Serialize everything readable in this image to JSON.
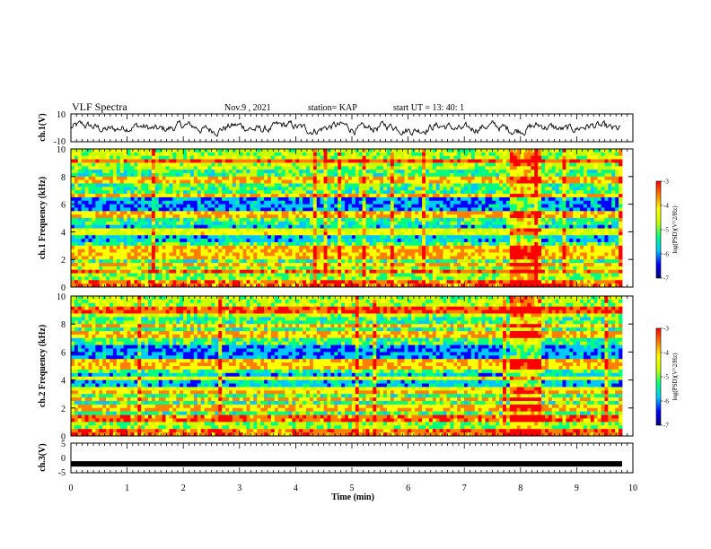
{
  "header": {
    "title": "VLF Spectra",
    "date": "Nov.9 , 2021",
    "station": "station= KAP",
    "start_time": "start UT = 13: 40: 1"
  },
  "chart_data": [
    {
      "type": "line",
      "panel": "ch1-waveform",
      "ylabel": "ch.1(V)",
      "yticks": [
        "10",
        "-10"
      ],
      "ylim": [
        -10,
        10
      ],
      "xlim": [
        0,
        10
      ],
      "description_values": "noisy waveform oscillating roughly between -6 and 6 V"
    },
    {
      "type": "heatmap",
      "panel": "ch1-spectrogram",
      "ylabel": "ch.1 Frequency (kHz)",
      "yticks": [
        "0",
        "2",
        "4",
        "6",
        "8",
        "10"
      ],
      "ylim": [
        0,
        10
      ],
      "xlim": [
        0,
        10
      ],
      "colorbar": {
        "label": "log(PSD)(V^2/Hz)",
        "ticks": [
          "-3",
          "-4",
          "-5",
          "-6",
          "-7"
        ],
        "range": [
          -7,
          -3
        ]
      },
      "bands_khz": [
        0.3,
        1.1,
        1.6,
        2.2,
        2.8,
        4.0,
        5.1,
        5.4,
        6.6,
        7.8,
        9.1
      ],
      "bright_interval_min": [
        7.8,
        8.4
      ]
    },
    {
      "type": "heatmap",
      "panel": "ch2-spectrogram",
      "ylabel": "ch.2 Frequency (kHz)",
      "yticks": [
        "0",
        "2",
        "4",
        "6",
        "8",
        "10"
      ],
      "ylim": [
        0,
        10
      ],
      "xlim": [
        0,
        10
      ],
      "colorbar": {
        "label": "log(PSD)(V^2/Hz)",
        "ticks": [
          "-3",
          "-4",
          "-5",
          "-6",
          "-7"
        ],
        "range": [
          -7,
          -3
        ]
      },
      "bands_khz": [
        0.2,
        1.2,
        2.0,
        2.6,
        3.3,
        4.1,
        4.9,
        5.3,
        7.2,
        7.9,
        9.0
      ],
      "bright_interval_min": [
        7.8,
        8.4
      ]
    },
    {
      "type": "line",
      "panel": "ch3-waveform",
      "ylabel": "ch.3(V)",
      "yticks": [
        "5",
        "0",
        "-5"
      ],
      "ylim": [
        -5,
        5
      ],
      "xlim": [
        0,
        10
      ],
      "level_v": -2
    }
  ],
  "xaxis": {
    "label": "Time (min)",
    "ticks": [
      "0",
      "1",
      "2",
      "3",
      "4",
      "5",
      "6",
      "7",
      "8",
      "9",
      "10"
    ]
  },
  "colors": {
    "colormap": [
      "#000080",
      "#0000ff",
      "#00c8ff",
      "#00ff80",
      "#c8ff00",
      "#ffff00",
      "#ff8000",
      "#ff0000"
    ]
  }
}
